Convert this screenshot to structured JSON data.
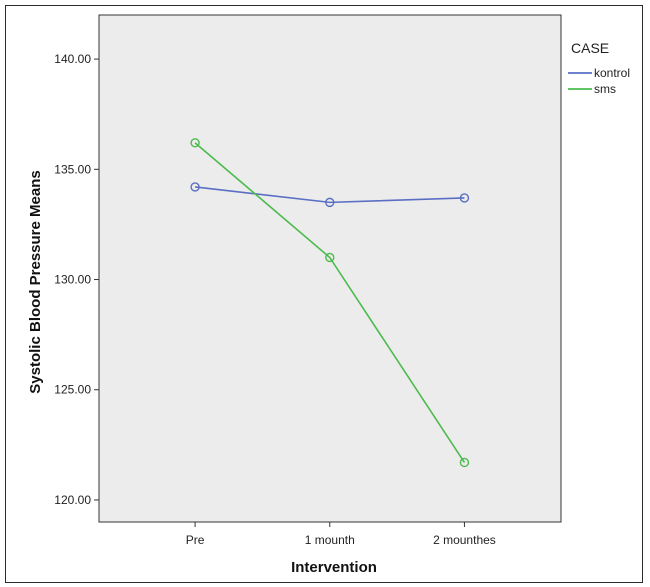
{
  "chart_data": {
    "type": "line",
    "title": "",
    "xlabel": "Intervention",
    "ylabel": "Systolic Blood Pressure Means",
    "categories": [
      "Pre",
      "1 mounth",
      "2 mounthes"
    ],
    "ylim": [
      119.0,
      142.0
    ],
    "yticks": [
      120,
      125,
      130,
      135,
      140
    ],
    "ytick_labels": [
      "120.00",
      "125.00",
      "130.00",
      "135.00",
      "140.00"
    ],
    "grid": false,
    "plot_background": "#ececec",
    "legend": {
      "title": "CASE",
      "placement": "right-top"
    },
    "series": [
      {
        "name": "kontrol",
        "color": "#5a6fc4",
        "values": [
          134.2,
          133.5,
          133.7
        ]
      },
      {
        "name": "sms",
        "color": "#4cbb4c",
        "values": [
          136.2,
          131.0,
          121.7
        ]
      }
    ]
  }
}
